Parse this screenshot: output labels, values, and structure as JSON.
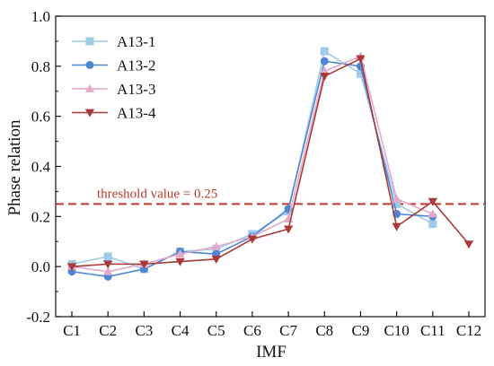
{
  "chart_data": {
    "type": "line",
    "title": "",
    "xlabel": "IMF",
    "ylabel": "Phase relation",
    "categories": [
      "C1",
      "C2",
      "C3",
      "C4",
      "C5",
      "C6",
      "C7",
      "C8",
      "C9",
      "C10",
      "C11",
      "C12"
    ],
    "ylim": [
      -0.2,
      1.0
    ],
    "yticks": [
      "-0.2",
      "0.0",
      "0.2",
      "0.4",
      "0.6",
      "0.8",
      "1.0"
    ],
    "grid": false,
    "legend_position": "top-left",
    "series": [
      {
        "name": "A13-1",
        "color": "#9fcbe8",
        "marker": "square",
        "values": [
          0.01,
          0.04,
          -0.01,
          0.06,
          0.07,
          0.13,
          0.22,
          0.86,
          0.77,
          0.25,
          0.17,
          null
        ]
      },
      {
        "name": "A13-2",
        "color": "#4f86d4",
        "marker": "circle",
        "values": [
          -0.02,
          -0.04,
          -0.01,
          0.06,
          0.05,
          0.12,
          0.23,
          0.82,
          0.8,
          0.21,
          0.2,
          null
        ]
      },
      {
        "name": "A13-3",
        "color": "#e3a9c9",
        "marker": "triangle-up",
        "values": [
          0.0,
          -0.02,
          0.01,
          0.05,
          0.08,
          0.12,
          0.19,
          0.78,
          0.84,
          0.27,
          0.21,
          null
        ]
      },
      {
        "name": "A13-4",
        "color": "#a83a3a",
        "marker": "triangle-down",
        "values": [
          0.0,
          0.01,
          0.01,
          0.02,
          0.03,
          0.11,
          0.15,
          0.76,
          0.83,
          0.16,
          0.26,
          0.09
        ]
      }
    ],
    "threshold": {
      "value": 0.25,
      "label": "threshold value = 0.25",
      "color": "#c0392b"
    }
  }
}
